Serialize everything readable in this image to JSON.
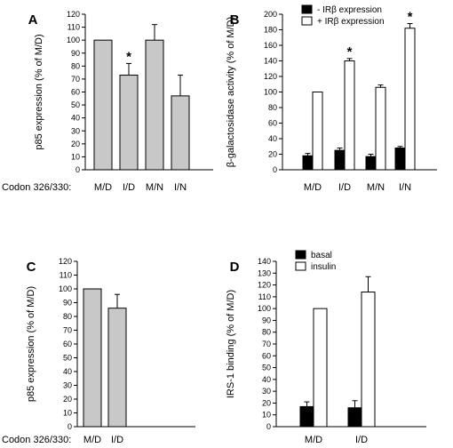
{
  "codon_label": "Codon 326/330:",
  "chart_data": [
    {
      "panel": "A",
      "type": "bar",
      "ylabel": "p85 expression (% of M/D)",
      "ylim": [
        0,
        120
      ],
      "yticks": [
        0,
        10,
        20,
        30,
        40,
        50,
        60,
        70,
        80,
        90,
        100,
        110,
        120
      ],
      "categories": [
        "M/D",
        "I/D",
        "M/N",
        "I/N"
      ],
      "series": [
        {
          "values": [
            100,
            73,
            100,
            57
          ],
          "errors": [
            0,
            9,
            12,
            16
          ],
          "color": "#c8c8c8"
        }
      ],
      "annotations": [
        {
          "category": "I/D",
          "text": "*"
        }
      ]
    },
    {
      "panel": "B",
      "type": "bar",
      "ylabel": "β-galactosidase activity (% of M/D)",
      "ylim": [
        0,
        200
      ],
      "yticks": [
        0,
        20,
        40,
        60,
        80,
        100,
        120,
        140,
        160,
        180,
        200
      ],
      "categories": [
        "M/D",
        "I/D",
        "M/N",
        "I/N"
      ],
      "legend": {
        "placement": "top-left"
      },
      "series": [
        {
          "name": "- IRβ expression",
          "values": [
            18,
            25,
            17,
            28
          ],
          "errors": [
            3,
            3,
            3,
            2
          ],
          "color": "#000000"
        },
        {
          "name": "+ IRβ expression",
          "values": [
            100,
            140,
            106,
            182
          ],
          "errors": [
            0,
            3,
            3,
            6
          ],
          "color": "#ffffff"
        }
      ],
      "annotations": [
        {
          "category": "I/D",
          "text": "*"
        },
        {
          "category": "I/N",
          "text": "*"
        }
      ]
    },
    {
      "panel": "C",
      "type": "bar",
      "ylabel": "p85 expression (% of M/D)",
      "ylim": [
        0,
        120
      ],
      "yticks": [
        0,
        10,
        20,
        30,
        40,
        50,
        60,
        70,
        80,
        90,
        100,
        110,
        120
      ],
      "categories": [
        "M/D",
        "I/D"
      ],
      "series": [
        {
          "values": [
            100,
            86
          ],
          "errors": [
            0,
            10
          ],
          "color": "#c8c8c8"
        }
      ]
    },
    {
      "panel": "D",
      "type": "bar",
      "ylabel": "IRS-1 binding (% of M/D)",
      "ylim": [
        0,
        140
      ],
      "yticks": [
        0,
        10,
        20,
        30,
        40,
        50,
        60,
        70,
        80,
        90,
        100,
        110,
        120,
        130,
        140
      ],
      "categories": [
        "M/D",
        "I/D"
      ],
      "legend": {
        "placement": "top-left"
      },
      "series": [
        {
          "name": "basal",
          "values": [
            17,
            16
          ],
          "errors": [
            4,
            6
          ],
          "color": "#000000"
        },
        {
          "name": "insulin",
          "values": [
            100,
            114
          ],
          "errors": [
            0,
            13
          ],
          "color": "#ffffff"
        }
      ]
    }
  ]
}
